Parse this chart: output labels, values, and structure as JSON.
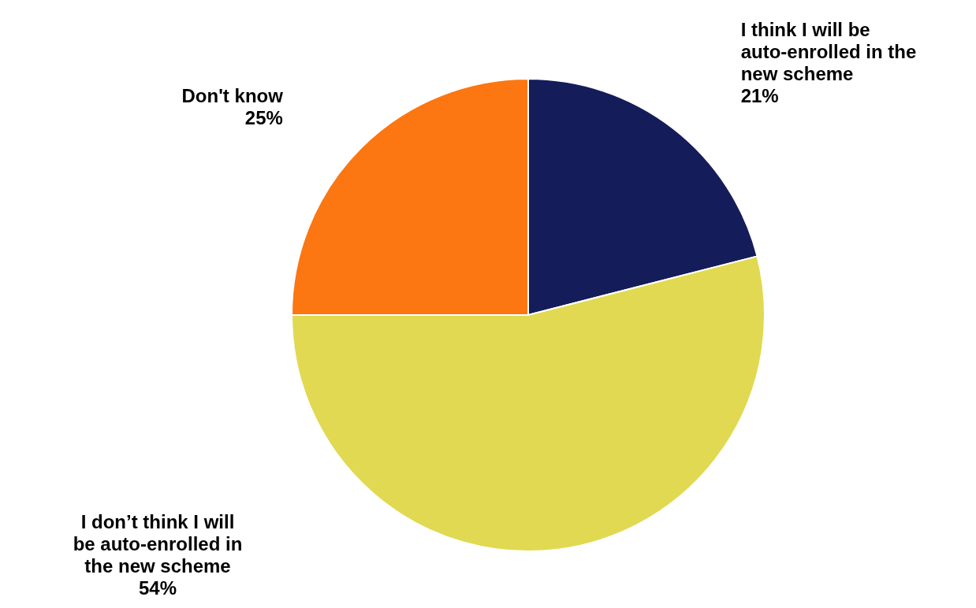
{
  "chart_data": {
    "type": "pie",
    "categories": [
      "I think I will be auto-enrolled in the new scheme",
      "I don’t think I will be auto-enrolled in the new scheme",
      "Don't know"
    ],
    "values": [
      21,
      54,
      25
    ],
    "colors": [
      "#141c5a",
      "#e1d951",
      "#fc7612"
    ],
    "value_labels": [
      "21%",
      "54%",
      "25%"
    ]
  }
}
